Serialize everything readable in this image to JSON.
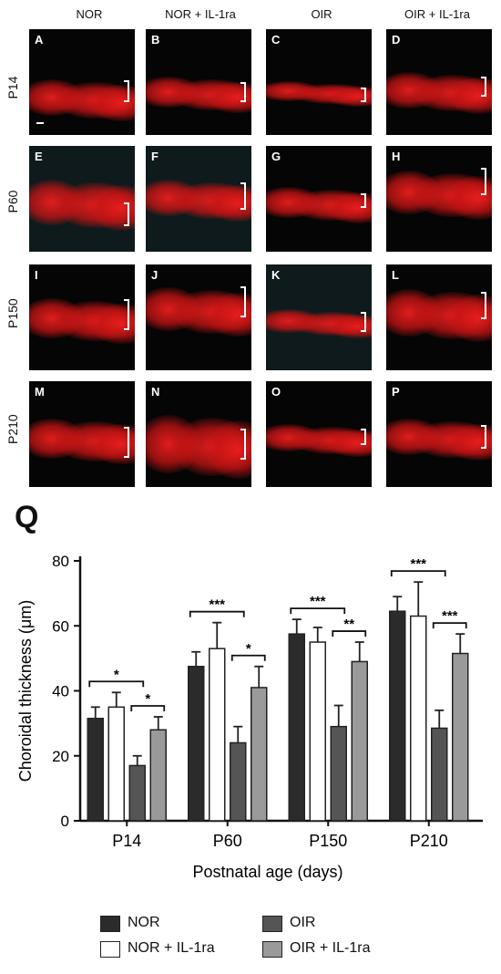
{
  "figure": {
    "column_headers": [
      "NOR",
      "NOR + IL-1ra",
      "OIR",
      "OIR + IL-1ra"
    ],
    "row_headers": [
      "P14",
      "P60",
      "P150",
      "P210"
    ],
    "panel_letters": [
      "A",
      "B",
      "C",
      "D",
      "E",
      "F",
      "G",
      "H",
      "I",
      "J",
      "K",
      "L",
      "M",
      "N",
      "O",
      "P"
    ],
    "panel_color": "#e82020",
    "chart_letter": "Q"
  },
  "chart_data": {
    "type": "bar",
    "categories": [
      "P14",
      "P60",
      "P150",
      "P210"
    ],
    "series": [
      {
        "name": "NOR",
        "color": "#2b2b2b",
        "values": [
          31.5,
          47.5,
          57.5,
          64.5
        ],
        "errors": [
          3.5,
          4.5,
          4.5,
          4.5
        ]
      },
      {
        "name": "NOR + IL-1ra",
        "color": "#ffffff",
        "values": [
          35,
          53,
          55,
          63
        ],
        "errors": [
          4.5,
          8,
          4.5,
          10.5
        ]
      },
      {
        "name": "OIR",
        "color": "#555555",
        "values": [
          17,
          24,
          29,
          28.5
        ],
        "errors": [
          3,
          5,
          6.5,
          5.5
        ]
      },
      {
        "name": "OIR + IL-1ra",
        "color": "#9a9a9a",
        "values": [
          28,
          41,
          49,
          51.5
        ],
        "errors": [
          4,
          6.5,
          6,
          6
        ]
      }
    ],
    "significance": [
      {
        "category": "P14",
        "label": "*",
        "pair": [
          "NOR",
          "OIR"
        ]
      },
      {
        "category": "P14",
        "label": "*",
        "pair": [
          "OIR",
          "OIR + IL-1ra"
        ]
      },
      {
        "category": "P60",
        "label": "***",
        "pair": [
          "NOR",
          "OIR"
        ]
      },
      {
        "category": "P60",
        "label": "*",
        "pair": [
          "OIR",
          "OIR + IL-1ra"
        ]
      },
      {
        "category": "P150",
        "label": "***",
        "pair": [
          "NOR",
          "OIR"
        ]
      },
      {
        "category": "P150",
        "label": "**",
        "pair": [
          "OIR",
          "OIR + IL-1ra"
        ]
      },
      {
        "category": "P210",
        "label": "***",
        "pair": [
          "NOR",
          "OIR"
        ]
      },
      {
        "category": "P210",
        "label": "***",
        "pair": [
          "OIR",
          "OIR + IL-1ra"
        ]
      }
    ],
    "xlabel": "Postnatal age (days)",
    "ylabel": "Choroidal thickness (μm)",
    "ylim": [
      0,
      80
    ],
    "yticks": [
      0,
      20,
      40,
      60,
      80
    ],
    "legend_position": "bottom"
  }
}
